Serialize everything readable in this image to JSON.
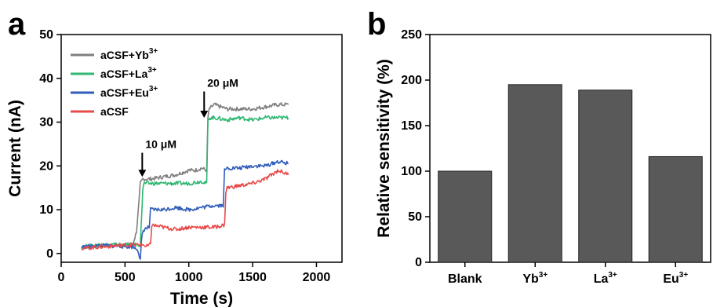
{
  "chart_data": [
    {
      "panel": "a",
      "type": "line",
      "xlabel": "Time (s)",
      "ylabel": "Current (nA)",
      "xlim": [
        0,
        2200
      ],
      "ylim": [
        -2,
        50
      ],
      "xticks": [
        0,
        500,
        1000,
        1500,
        2000
      ],
      "yticks": [
        0,
        10,
        20,
        30,
        40,
        50
      ],
      "grid": false,
      "legend_position": "top-left",
      "series": [
        {
          "name": "aCSF+Yb3+",
          "name_base": "aCSF+Yb",
          "name_sup": "3+",
          "color": "#7f7f7f",
          "x": [
            160,
            300,
            450,
            560,
            590,
            610,
            620,
            640,
            700,
            800,
            900,
            1000,
            1050,
            1100,
            1140,
            1150,
            1160,
            1200,
            1300,
            1400,
            1500,
            1600,
            1700,
            1780
          ],
          "y": [
            1.5,
            1.8,
            2.0,
            2.0,
            5,
            12,
            16,
            17,
            17,
            17.5,
            18,
            19,
            19,
            19.5,
            19,
            31,
            33,
            34,
            33,
            33,
            33,
            33.5,
            34,
            34
          ]
        },
        {
          "name": "aCSF+La3+",
          "name_base": "aCSF+La",
          "name_sup": "3+",
          "color": "#2eb872",
          "x": [
            160,
            300,
            450,
            560,
            620,
            640,
            650,
            700,
            800,
            900,
            1000,
            1100,
            1140,
            1150,
            1160,
            1200,
            1300,
            1400,
            1500,
            1600,
            1700,
            1780
          ],
          "y": [
            1.5,
            2.0,
            2.0,
            2.0,
            2.0,
            15,
            16,
            16,
            16,
            16,
            16,
            16.5,
            16,
            30,
            31,
            31,
            30.5,
            31,
            30.5,
            31,
            31,
            31
          ]
        },
        {
          "name": "aCSF+Eu3+",
          "name_base": "aCSF+Eu",
          "name_sup": "3+",
          "color": "#2f5dbb",
          "x": [
            160,
            300,
            450,
            560,
            600,
            620,
            630,
            640,
            650,
            690,
            700,
            800,
            900,
            1000,
            1100,
            1200,
            1270,
            1280,
            1300,
            1400,
            1500,
            1600,
            1700,
            1780
          ],
          "y": [
            1.5,
            1.8,
            1.7,
            1.5,
            1.0,
            -1.5,
            3,
            5,
            5.5,
            6,
            10,
            10,
            10.5,
            10,
            10.5,
            11,
            11,
            19,
            19.5,
            19.5,
            20,
            20,
            21,
            20.5
          ]
        },
        {
          "name": "aCSF",
          "name_base": "aCSF",
          "name_sup": "",
          "color": "#e84a4a",
          "x": [
            160,
            300,
            450,
            560,
            600,
            650,
            660,
            700,
            710,
            800,
            900,
            1000,
            1100,
            1200,
            1280,
            1290,
            1300,
            1400,
            1500,
            1600,
            1700,
            1780
          ],
          "y": [
            1.2,
            1.5,
            1.8,
            2.0,
            2.0,
            2.0,
            1.5,
            2.0,
            6.5,
            6,
            5.5,
            6,
            6,
            6,
            6.5,
            14,
            15,
            15.5,
            16,
            17,
            19,
            18
          ]
        }
      ],
      "annotations": [
        {
          "text": "10 μM",
          "x": 635,
          "y_arrow_tip": 17.5,
          "y_arrow_tail": 23
        },
        {
          "text": "20 μM",
          "x": 1120,
          "y_arrow_tip": 31,
          "y_arrow_tail": 37
        }
      ]
    },
    {
      "panel": "b",
      "type": "bar",
      "xlabel": "",
      "ylabel": "Relative sensitivity (%)",
      "ylim": [
        0,
        250
      ],
      "yticks": [
        0,
        50,
        100,
        150,
        200,
        250
      ],
      "categories": [
        {
          "base": "Blank",
          "sup": ""
        },
        {
          "base": "Yb",
          "sup": "3+"
        },
        {
          "base": "La",
          "sup": "3+"
        },
        {
          "base": "Eu",
          "sup": "3+"
        }
      ],
      "values": [
        100,
        195,
        189,
        116
      ],
      "bar_color": "#595959",
      "grid": false
    }
  ]
}
